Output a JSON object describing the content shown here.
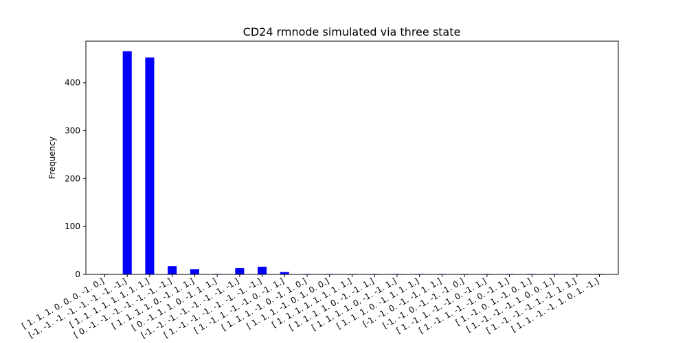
{
  "chart_data": {
    "type": "bar",
    "title": "CD24 rmnode simulated via three state",
    "xlabel": "",
    "ylabel": "Frequency",
    "ylim": [
      0,
      487
    ],
    "yticks": [
      0,
      100,
      200,
      300,
      400
    ],
    "categories": [
      "[ 1. 1. 1. 0. 0. 0. -1. 0.]",
      "[-1. -1. -1. -1. -1. -1. -1. -1.]",
      "[ 1. 1. 1. 1. 1. 1. 1. 1.]",
      "[ 0. -1. -1. -1. -1. -1. -1. -1.]",
      "[ 1. 1. 1. 1. 0. -1. 1. 1.]",
      "[ 0. -1. 1. 1. 0. -1. 1. 1.]",
      "[-1. -1. -1. -1. -1. -1. -1. -1.]",
      "[ 1. -1. -1. -1. -1. -1. -1. -1.]",
      "[ 1. -1. 1. -1. -1. 0. -1. 1.]",
      "[ 1. 1. 1. -1. 0. -1. 1. 0.]",
      "[ 1. 1. 1. -1. 0. 1. 0. 0.]",
      "[ 1. 1. 1. 1. 1. 1. 1. 1.]",
      "[ 1. 1. 1. 1. 0. -1. -1. 1.]",
      "[ 1. 1. 1. 1. 0. -1. -1. 1.]",
      "[ 1. 1. 1. 0. -1. 1. 1. 1.]",
      "[-1. -1. 0. -1. -1. 1. 1.]",
      "[-1. -1. 0. -1. -1. -1. 0.]",
      "[ 1. -1. 1. -1. -1. 0. -1. 1.]",
      "[ 1. -1. 1. -1. -1. 0. -1. 1.]",
      "[ 1. -1. 0. 1. -1. 0. 1.]",
      "[ 1. -1. -1. -1. 1. 0. 0. 1.]",
      "[ 1. -1. -1. -1. 1. -1. 1. 1.]",
      "[ 1. 1. -1. -1. 1. 0. 1. -1.]"
    ],
    "values": [
      1,
      466,
      453,
      17,
      11,
      1,
      13,
      16,
      5,
      1,
      1,
      1,
      1,
      1,
      1,
      1,
      1,
      1,
      1,
      1,
      1,
      1,
      1
    ],
    "bar_color": "#0000ff",
    "grid": false,
    "legend": "none"
  }
}
